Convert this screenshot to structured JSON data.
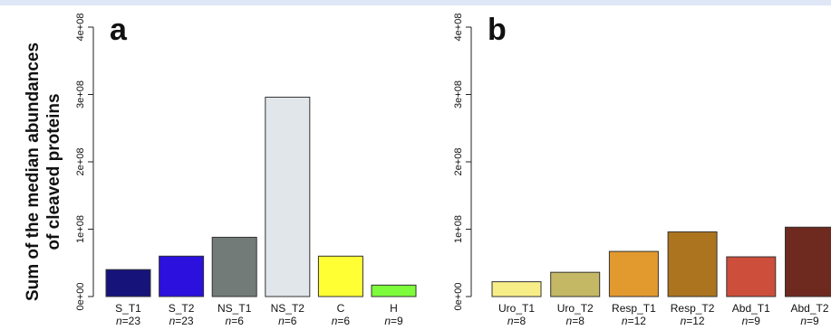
{
  "figure": {
    "ylabel_line1": "Sum of the median abundances",
    "ylabel_line2": "of cleaved proteins"
  },
  "chart_data": [
    {
      "type": "bar",
      "panel": "a",
      "ylim": [
        0,
        400000000
      ],
      "yticks": [
        {
          "value": 0,
          "label": "0e+00"
        },
        {
          "value": 100000000,
          "label": "1e+08"
        },
        {
          "value": 200000000,
          "label": "2e+08"
        },
        {
          "value": 300000000,
          "label": "3e+08"
        },
        {
          "value": 400000000,
          "label": "4e+08"
        }
      ],
      "categories": [
        "S_T1",
        "S_T2",
        "NS_T1",
        "NS_T2",
        "C",
        "H"
      ],
      "n_values": [
        "23",
        "23",
        "6",
        "6",
        "6",
        "9"
      ],
      "values": [
        40000000,
        60000000,
        88000000,
        296000000,
        60000000,
        17000000
      ],
      "colors": [
        "#16137a",
        "#2b10de",
        "#737b79",
        "#e0e6ea",
        "#ffff33",
        "#7cfc3a"
      ]
    },
    {
      "type": "bar",
      "panel": "b",
      "ylim": [
        0,
        400000000
      ],
      "yticks": [
        {
          "value": 0,
          "label": "0e+00"
        },
        {
          "value": 100000000,
          "label": "1e+08"
        },
        {
          "value": 200000000,
          "label": "2e+08"
        },
        {
          "value": 300000000,
          "label": "3e+08"
        },
        {
          "value": 400000000,
          "label": "4e+08"
        }
      ],
      "categories": [
        "Uro_T1",
        "Uro_T2",
        "Resp_T1",
        "Resp_T2",
        "Abd_T1",
        "Abd_T2"
      ],
      "n_values": [
        "8",
        "8",
        "12",
        "12",
        "9",
        "9"
      ],
      "values": [
        22000000,
        36000000,
        67000000,
        96000000,
        59000000,
        103000000
      ],
      "colors": [
        "#f8ee88",
        "#c5b865",
        "#e29a2e",
        "#ad7420",
        "#cd4e3b",
        "#6e2a1f"
      ]
    }
  ]
}
